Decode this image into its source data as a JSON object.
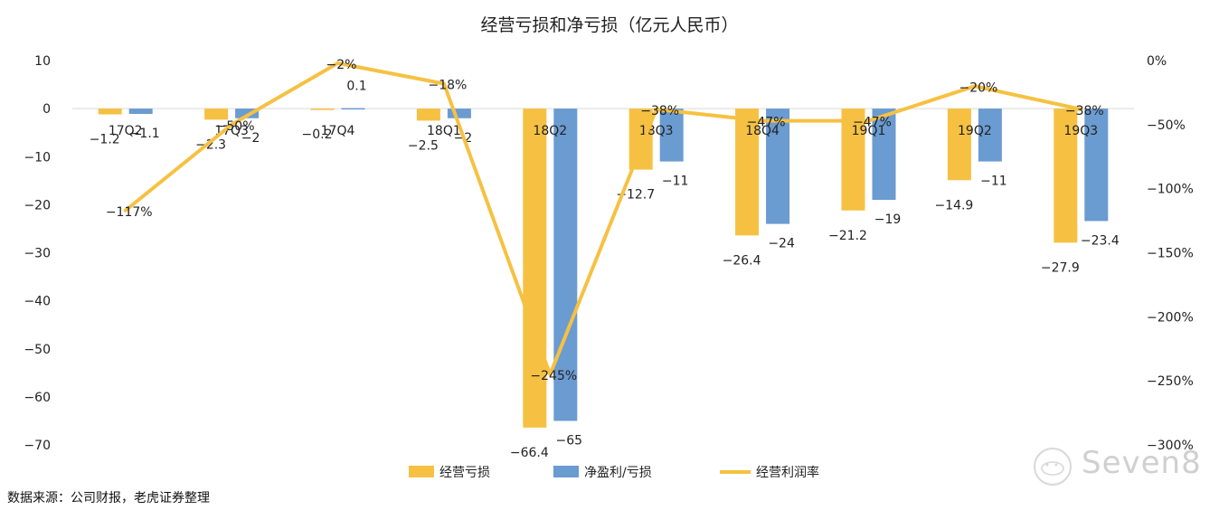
{
  "chart_data": {
    "type": "bar",
    "title": "经营亏损和净亏损（亿元人民币）",
    "categories": [
      "17Q2",
      "17Q3",
      "17Q4",
      "18Q1",
      "18Q2",
      "18Q3",
      "18Q4",
      "19Q1",
      "19Q2",
      "19Q3"
    ],
    "series": [
      {
        "name": "经营亏损",
        "type": "bar",
        "axis": "left",
        "values": [
          -1.2,
          -2.3,
          -0.2,
          -2.5,
          -66.4,
          -12.7,
          -26.4,
          -21.2,
          -14.9,
          -27.9
        ],
        "labels": [
          "−1.2",
          "−2.3",
          "−0.2",
          "−2.5",
          "−66.4",
          "−12.7",
          "−26.4",
          "−21.2",
          "−14.9",
          "−27.9"
        ],
        "color": "#F6C142"
      },
      {
        "name": "净盈利/亏损",
        "type": "bar",
        "axis": "left",
        "values": [
          -1.1,
          -2,
          0.1,
          -2,
          -65,
          -11,
          -24,
          -19,
          -11,
          -23.4
        ],
        "labels": [
          "−1.1",
          "−2",
          "0.1",
          "−2",
          "−65",
          "−11",
          "−24",
          "−19",
          "−11",
          "−23.4"
        ],
        "color": "#6A9BD1"
      },
      {
        "name": "经营利润率",
        "type": "line",
        "axis": "right",
        "values": [
          -117,
          -50,
          -2,
          -18,
          -245,
          -38,
          -47,
          -47,
          -20,
          -38
        ],
        "labels": [
          "−117%",
          "−50%",
          "−2%",
          "−18%",
          "−245%",
          "−38%",
          "−47%",
          "−47%",
          "−20%",
          "−38%"
        ],
        "color": "#F6C142"
      }
    ],
    "y_left": {
      "min": -70,
      "max": 10,
      "ticks": [
        10,
        0,
        -10,
        -20,
        -30,
        -40,
        -50,
        -60,
        -70
      ],
      "tick_labels": [
        "10",
        "0",
        "−10",
        "−20",
        "−30",
        "−40",
        "−50",
        "−60",
        "−70"
      ]
    },
    "y_right": {
      "min": -300,
      "max": 0,
      "ticks": [
        0,
        -50,
        -100,
        -150,
        -200,
        -250,
        -300
      ],
      "tick_labels": [
        "0%",
        "−50%",
        "−100%",
        "−150%",
        "−200%",
        "−250%",
        "−300%"
      ]
    },
    "grid": false,
    "legend_position": "bottom"
  },
  "source_note": "数据来源：公司财报，老虎证券整理",
  "watermark": {
    "text": "Seven8"
  },
  "colors": {
    "operating_loss": "#F6C142",
    "net_loss": "#6A9BD1",
    "margin_line": "#F6C142",
    "axis": "#d9d9d9"
  }
}
